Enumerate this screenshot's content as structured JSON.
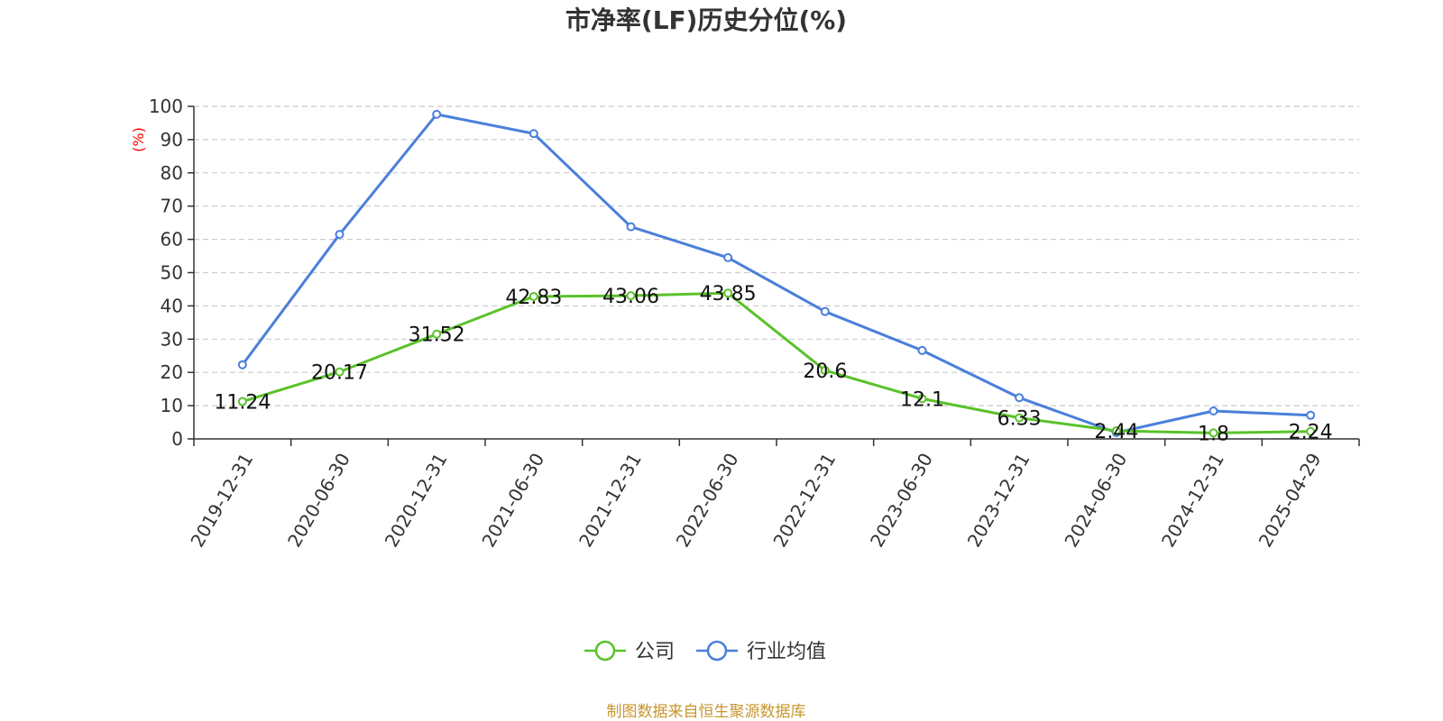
{
  "chart_data": {
    "type": "line",
    "title": "市净率(LF)历史分位(%)",
    "ylabel": "(%)",
    "xlabel": "",
    "ylim": [
      0,
      100
    ],
    "yticks": [
      0,
      10,
      20,
      30,
      40,
      50,
      60,
      70,
      80,
      90,
      100
    ],
    "grid": true,
    "legend_position": "bottom-center",
    "categories": [
      "2019-12-31",
      "2020-06-30",
      "2020-12-31",
      "2021-06-30",
      "2021-12-31",
      "2022-06-30",
      "2022-12-31",
      "2023-06-30",
      "2023-12-31",
      "2024-06-30",
      "2024-12-31",
      "2025-04-29"
    ],
    "series": [
      {
        "name": "公司",
        "color": "#5ac229",
        "values": [
          11.24,
          20.17,
          31.52,
          42.83,
          43.06,
          43.85,
          20.6,
          12.1,
          6.33,
          2.44,
          1.8,
          2.24
        ],
        "labels": [
          "11.24",
          "20.17",
          "31.52",
          "42.83",
          "43.06",
          "43.85",
          "20.6",
          "12.1",
          "6.33",
          "2.44",
          "1.8",
          "2.24"
        ]
      },
      {
        "name": "行业均值",
        "color": "#4a7fdb",
        "values": [
          22.3,
          61.5,
          97.6,
          91.8,
          63.8,
          54.5,
          38.3,
          26.6,
          12.4,
          1.9,
          8.4,
          7.1
        ]
      }
    ]
  },
  "footer": "制图数据来自恒生聚源数据库"
}
